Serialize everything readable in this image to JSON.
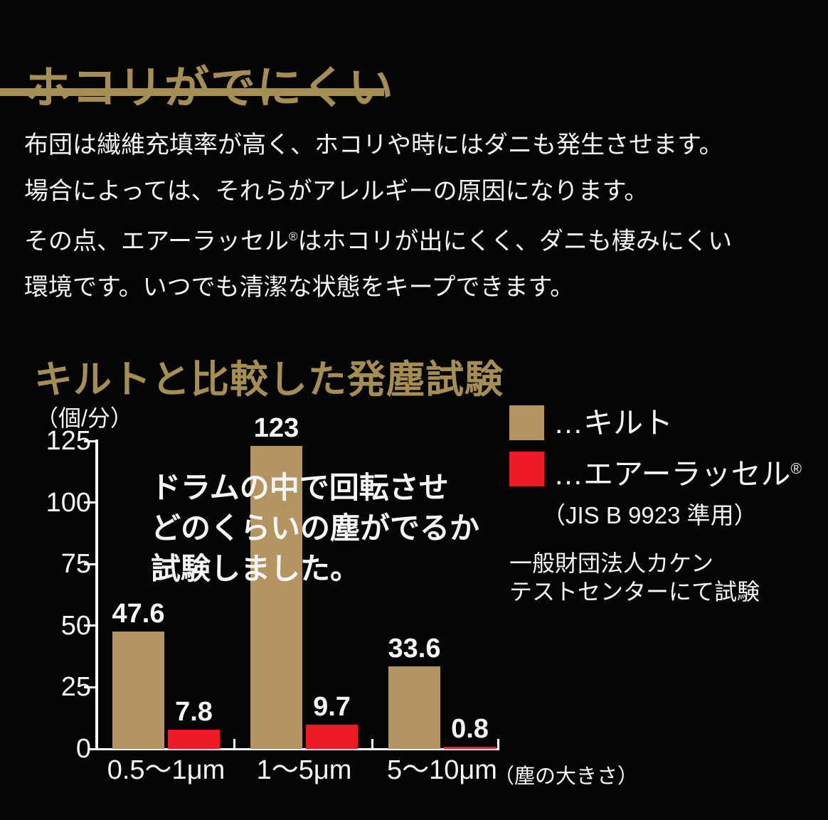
{
  "header": {
    "title": "ホコリがでにくい",
    "accent_color": "#a58e52"
  },
  "intro": {
    "lines": [
      "布団は繊維充填率が高く、ホコリや時にはダニも発生させます。",
      "場合によっては、それらがアレルギーの原因になります。",
      "その点、エアーラッセル®はホコリが出にくく、ダニも棲みにくい",
      "環境です。いつでも清潔な状態をキープできます。"
    ]
  },
  "chart_section": {
    "title": "キルトと比較した発塵試験",
    "annotation_lines": [
      "ドラムの中で回転させ",
      "どのくらいの塵がでるか",
      "試験しました。"
    ],
    "legend": [
      {
        "key": "quilt",
        "label": "…キルト",
        "color": "#b29560"
      },
      {
        "key": "air-russell",
        "label": "…エアーラッセル®",
        "color": "#ec1b24"
      }
    ],
    "legend_note": "（JIS B 9923 準用）",
    "source_lines": [
      "一般財団法人カケン",
      "テストセンターにて試験"
    ]
  },
  "chart_data": {
    "type": "bar",
    "title": "キルトと比較した発塵試験",
    "unit_label": "（個/分）",
    "categories": [
      "0.5〜1μm",
      "1〜5μm",
      "5〜10μm"
    ],
    "x_note": "（塵の大きさ）",
    "series": [
      {
        "name": "キルト",
        "key": "quilt",
        "color": "#b29560",
        "values": [
          47.6,
          123,
          33.6
        ]
      },
      {
        "name": "エアーラッセル®",
        "key": "air-russell",
        "color": "#ec1b24",
        "values": [
          7.8,
          9.7,
          0.8
        ]
      }
    ],
    "ylim": [
      0,
      125
    ],
    "yticks": [
      0,
      25,
      50,
      75,
      100,
      125
    ],
    "grid": false,
    "legend_position": "right",
    "bar_color_quilt": "#b29560",
    "bar_color_air_russell": "#ec1b24"
  }
}
